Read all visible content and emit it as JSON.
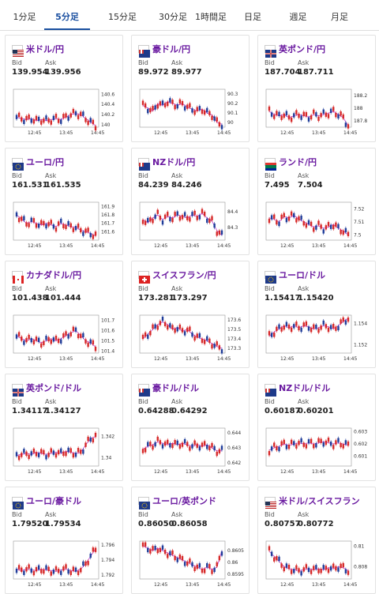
{
  "tabs": [
    "1分足",
    "5分足",
    "15分足",
    "30分足",
    "1時間足",
    "日足",
    "週足",
    "月足"
  ],
  "active_tab": 1,
  "colors": {
    "up": "#d62828",
    "down": "#1f3c99",
    "ma1": "#c23bd6",
    "ma2": "#36b7c9",
    "accent": "#1a4fa0"
  },
  "labels": {
    "bid": "Bid",
    "ask": "Ask"
  },
  "x_ticks": [
    "12:45",
    "13:45",
    "14:45"
  ],
  "pairs": [
    {
      "name": "米ドル/円",
      "bid": "139.954",
      "ask": "139.956",
      "flag": "us",
      "y_ticks": [
        "140.6",
        "140.4",
        "140.2",
        "140"
      ],
      "chart_data": {
        "type": "candlestick",
        "trend": [
          140.15,
          140.12,
          140.1,
          140.12,
          140.08,
          140.1,
          140.08,
          140.1,
          140.12,
          140.1,
          140.15,
          140.2,
          140.22,
          140.2,
          140.12,
          140.05,
          139.98
        ],
        "ylim": [
          139.95,
          140.7
        ]
      }
    },
    {
      "name": "豪ドル/円",
      "bid": "89.972",
      "ask": "89.977",
      "flag": "au",
      "y_ticks": [
        "90.3",
        "90.2",
        "90.1",
        "90"
      ],
      "chart_data": {
        "type": "candlestick",
        "trend": [
          90.18,
          90.15,
          90.12,
          90.2,
          90.18,
          90.22,
          90.2,
          90.18,
          90.2,
          90.16,
          90.14,
          90.12,
          90.14,
          90.1,
          90.08,
          90.0,
          89.98
        ],
        "ylim": [
          89.95,
          90.35
        ]
      }
    },
    {
      "name": "英ポンド/円",
      "bid": "187.704",
      "ask": "187.711",
      "flag": "gb",
      "y_ticks": [
        "188.2",
        "188",
        "187.8"
      ],
      "chart_data": {
        "type": "candlestick",
        "trend": [
          187.95,
          187.9,
          187.88,
          187.9,
          187.85,
          187.88,
          187.9,
          187.88,
          187.86,
          187.9,
          187.88,
          187.9,
          187.92,
          187.95,
          187.9,
          187.85,
          187.72
        ],
        "ylim": [
          187.7,
          188.3
        ]
      }
    },
    {
      "name": "ユーロ/円",
      "bid": "161.531",
      "ask": "161.535",
      "flag": "eu",
      "y_ticks": [
        "161.9",
        "161.8",
        "161.7",
        "161.6"
      ],
      "chart_data": {
        "type": "candlestick",
        "trend": [
          161.8,
          161.75,
          161.7,
          161.72,
          161.7,
          161.68,
          161.7,
          161.68,
          161.66,
          161.7,
          161.68,
          161.66,
          161.65,
          161.62,
          161.6,
          161.58,
          161.55
        ],
        "ylim": [
          161.5,
          161.95
        ]
      }
    },
    {
      "name": "NZドル/円",
      "bid": "84.239",
      "ask": "84.246",
      "flag": "nz",
      "y_ticks": [
        "84.4",
        "84.3"
      ],
      "chart_data": {
        "type": "candlestick",
        "trend": [
          84.35,
          84.33,
          84.36,
          84.38,
          84.35,
          84.37,
          84.36,
          84.38,
          84.37,
          84.36,
          84.38,
          84.37,
          84.39,
          84.36,
          84.34,
          84.28,
          84.25
        ],
        "ylim": [
          84.22,
          84.46
        ]
      }
    },
    {
      "name": "ランド/円",
      "bid": "7.495",
      "ask": "7.504",
      "flag": "za",
      "y_ticks": [
        "7.52",
        "7.51",
        "7.5"
      ],
      "chart_data": {
        "type": "candlestick",
        "trend": [
          7.513,
          7.512,
          7.51,
          7.514,
          7.513,
          7.515,
          7.512,
          7.51,
          7.508,
          7.506,
          7.507,
          7.505,
          7.506,
          7.508,
          7.505,
          7.503,
          7.5
        ],
        "ylim": [
          7.496,
          7.525
        ]
      }
    },
    {
      "name": "カナダドル/円",
      "bid": "101.438",
      "ask": "101.444",
      "flag": "ca",
      "y_ticks": [
        "101.7",
        "101.6",
        "101.5",
        "101.4"
      ],
      "chart_data": {
        "type": "candlestick",
        "trend": [
          101.55,
          101.52,
          101.5,
          101.52,
          101.5,
          101.48,
          101.5,
          101.52,
          101.5,
          101.52,
          101.55,
          101.58,
          101.6,
          101.55,
          101.5,
          101.48,
          101.44
        ],
        "ylim": [
          101.38,
          101.75
        ]
      }
    },
    {
      "name": "スイスフラン/円",
      "bid": "173.281",
      "ask": "173.297",
      "flag": "ch",
      "y_ticks": [
        "173.6",
        "173.5",
        "173.4",
        "173.3"
      ],
      "chart_data": {
        "type": "candlestick",
        "trend": [
          173.4,
          173.45,
          173.5,
          173.55,
          173.58,
          173.55,
          173.5,
          173.52,
          173.48,
          173.5,
          173.45,
          173.42,
          173.4,
          173.38,
          173.35,
          173.32,
          173.3
        ],
        "ylim": [
          173.25,
          173.65
        ]
      }
    },
    {
      "name": "ユーロ/ドル",
      "bid": "1.15417",
      "ask": "1.15420",
      "flag": "eu",
      "y_ticks": [
        "1.154",
        "1.152"
      ],
      "chart_data": {
        "type": "candlestick",
        "trend": [
          1.1528,
          1.1532,
          1.1535,
          1.1538,
          1.1536,
          1.1538,
          1.1536,
          1.1538,
          1.1537,
          1.1535,
          1.1536,
          1.1538,
          1.1537,
          1.1535,
          1.1538,
          1.1542,
          1.1545
        ],
        "ylim": [
          1.1512,
          1.1548
        ]
      }
    },
    {
      "name": "英ポンド/ドル",
      "bid": "1.34117",
      "ask": "1.34127",
      "flag": "gb",
      "y_ticks": [
        "1.342",
        "1.34"
      ],
      "chart_data": {
        "type": "candlestick",
        "trend": [
          1.3402,
          1.3403,
          1.3404,
          1.3403,
          1.3405,
          1.3404,
          1.3403,
          1.3404,
          1.3405,
          1.3404,
          1.3406,
          1.3405,
          1.3404,
          1.3405,
          1.3412,
          1.3418,
          1.342
        ],
        "ylim": [
          1.3392,
          1.3428
        ]
      }
    },
    {
      "name": "豪ドル/ドル",
      "bid": "0.64288",
      "ask": "0.64292",
      "flag": "au",
      "y_ticks": [
        "0.644",
        "0.643",
        "0.642"
      ],
      "chart_data": {
        "type": "candlestick",
        "trend": [
          0.6429,
          0.6431,
          0.6432,
          0.6434,
          0.6433,
          0.6432,
          0.6433,
          0.6432,
          0.6433,
          0.6432,
          0.6431,
          0.6432,
          0.6431,
          0.6432,
          0.643,
          0.6428,
          0.6428
        ],
        "ylim": [
          0.6418,
          0.6443
        ]
      }
    },
    {
      "name": "NZドル/ドル",
      "bid": "0.60187",
      "ask": "0.60201",
      "flag": "nz",
      "y_ticks": [
        "0.603",
        "0.602",
        "0.601"
      ],
      "chart_data": {
        "type": "candlestick",
        "trend": [
          0.6015,
          0.6017,
          0.6018,
          0.602,
          0.6019,
          0.602,
          0.6021,
          0.602,
          0.6021,
          0.602,
          0.6021,
          0.6022,
          0.6021,
          0.602,
          0.6021,
          0.602,
          0.6019
        ],
        "ylim": [
          0.6002,
          0.6033
        ]
      }
    },
    {
      "name": "ユーロ/豪ドル",
      "bid": "1.79520",
      "ask": "1.79534",
      "flag": "eu",
      "y_ticks": [
        "1.796",
        "1.794",
        "1.792"
      ],
      "chart_data": {
        "type": "candlestick",
        "trend": [
          1.7928,
          1.7926,
          1.7928,
          1.7927,
          1.7926,
          1.7928,
          1.7927,
          1.7926,
          1.7925,
          1.7927,
          1.7928,
          1.7926,
          1.7925,
          1.7928,
          1.7935,
          1.7945,
          1.7955
        ],
        "ylim": [
          1.7915,
          1.7965
        ]
      }
    },
    {
      "name": "ユーロ/英ポンド",
      "bid": "0.86050",
      "ask": "0.86058",
      "flag": "eu",
      "y_ticks": [
        "0.8605",
        "0.86",
        "0.8595"
      ],
      "chart_data": {
        "type": "candlestick",
        "trend": [
          0.8607,
          0.8606,
          0.8605,
          0.8606,
          0.8605,
          0.8604,
          0.8603,
          0.8602,
          0.8601,
          0.86,
          0.8599,
          0.8598,
          0.8597,
          0.8598,
          0.8597,
          0.8598,
          0.8605
        ],
        "ylim": [
          0.8593,
          0.8609
        ]
      }
    },
    {
      "name": "米ドル/スイスフラン",
      "bid": "0.80757",
      "ask": "0.80772",
      "flag": "us",
      "y_ticks": [
        "0.81",
        "0.808"
      ],
      "chart_data": {
        "type": "candlestick",
        "trend": [
          0.8095,
          0.809,
          0.8085,
          0.808,
          0.8078,
          0.8077,
          0.8076,
          0.8077,
          0.8078,
          0.8077,
          0.8078,
          0.8077,
          0.8079,
          0.8078,
          0.808,
          0.8079,
          0.8076
        ],
        "ylim": [
          0.8068,
          0.8105
        ]
      }
    }
  ]
}
